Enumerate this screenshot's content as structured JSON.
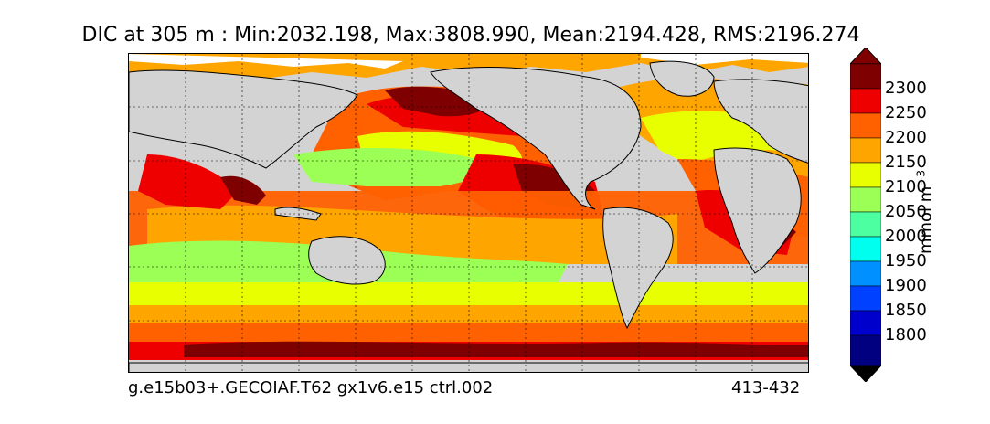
{
  "title": "DIC at 305 m : Min:2032.198, Max:3808.990, Mean:2194.428, RMS:2196.274",
  "footer": {
    "case": "g.e15b03+.GECOIAF.T62 gx1v6.e15 ctrl.002",
    "years": "413-432"
  },
  "colorbar": {
    "units_base": "mmol m",
    "units_exp": "−3",
    "ticks": [
      "2300",
      "2250",
      "2200",
      "2150",
      "2100",
      "2050",
      "2000",
      "1950",
      "1900",
      "1850",
      "1800"
    ],
    "colors": {
      "over": "#7f0000",
      "2250-2300": "#7f0000",
      "2200-2250": "#ee0000",
      "2150-2200": "#ff6000",
      "2100-2150": "#ffa500",
      "2050-2100": "#e8ff00",
      "2000-2050": "#9cff56",
      "1950-2000": "#4cffa0",
      "1900-1950": "#00ffee",
      "1850-1900": "#0090ff",
      "1800-1850": "#0040ff",
      "under-1800": "#0000cd",
      "under": "#000080"
    }
  },
  "map": {
    "land_color": "#d3d3d3",
    "ice_color": "#ffffff",
    "gridlines": "dotted"
  }
}
